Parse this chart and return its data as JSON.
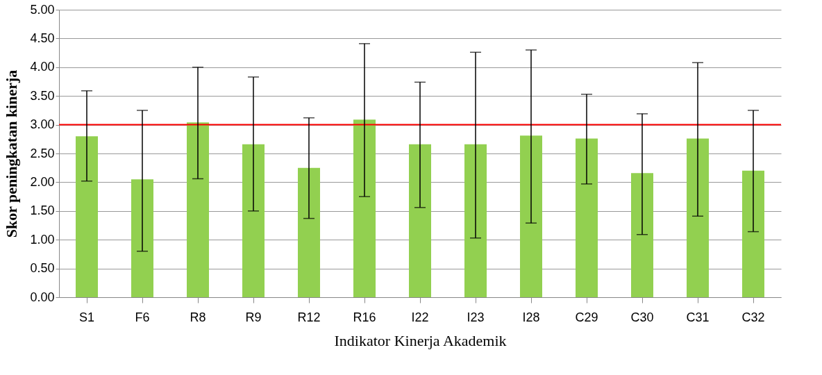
{
  "chart_data": {
    "type": "bar",
    "xlabel": "Indikator Kinerja Akademik",
    "ylabel": "Skor peningkatan kinerja",
    "categories": [
      "S1",
      "F6",
      "R8",
      "R9",
      "R12",
      "R16",
      "I22",
      "I23",
      "I28",
      "C29",
      "C30",
      "C31",
      "C32"
    ],
    "values": [
      2.8,
      2.05,
      3.04,
      2.66,
      2.25,
      3.09,
      2.66,
      2.66,
      2.81,
      2.76,
      2.16,
      2.76,
      2.2
    ],
    "errors": [
      [
        2.02,
        3.59
      ],
      [
        0.8,
        3.25
      ],
      [
        2.06,
        4.0
      ],
      [
        1.5,
        3.83
      ],
      [
        1.37,
        3.12
      ],
      [
        1.75,
        4.41
      ],
      [
        1.56,
        3.74
      ],
      [
        1.03,
        4.26
      ],
      [
        1.29,
        4.3
      ],
      [
        1.97,
        3.53
      ],
      [
        1.09,
        3.19
      ],
      [
        1.41,
        4.08
      ],
      [
        1.14,
        3.25
      ]
    ],
    "color": "#92d050",
    "ylim": [
      0,
      5
    ],
    "yticks": [
      {
        "value": 0,
        "label": "0.00"
      },
      {
        "value": 0.5,
        "label": "0.50"
      },
      {
        "value": 1,
        "label": "1.00"
      },
      {
        "value": 1.5,
        "label": "1.50"
      },
      {
        "value": 2,
        "label": "2.00"
      },
      {
        "value": 2.5,
        "label": "2.50"
      },
      {
        "value": 3,
        "label": "3.00"
      },
      {
        "value": 3.5,
        "label": "3.50"
      },
      {
        "value": 4,
        "label": "4.00"
      },
      {
        "value": 4.5,
        "label": "4.50"
      },
      {
        "value": 5,
        "label": "5.00"
      }
    ],
    "grid": "y",
    "ref_lines": [
      {
        "axis": "y",
        "value": 3,
        "color": "#ff0000"
      }
    ]
  }
}
